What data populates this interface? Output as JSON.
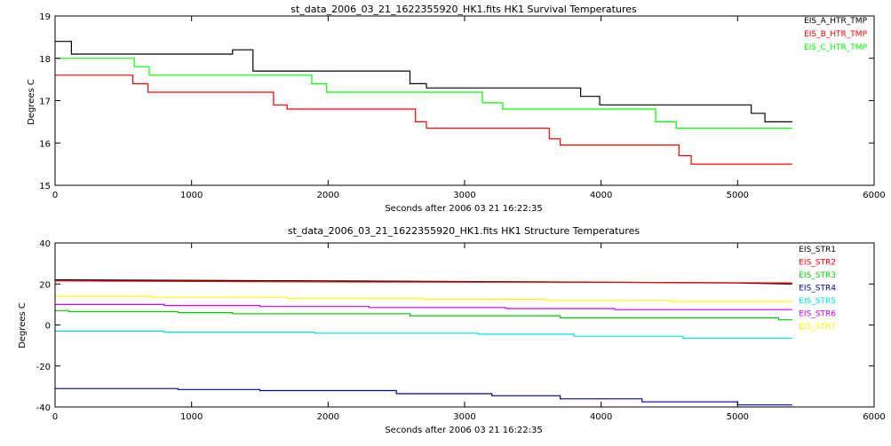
{
  "chart_data": [
    {
      "type": "line",
      "title": "st_data_2006_03_21_1622355920_HK1.fits HK1 Survival Temperatures",
      "xlabel": "Seconds after 2006 03 21 16:22:35",
      "ylabel": "Degrees C",
      "xlim": [
        0,
        6000
      ],
      "ylim": [
        15,
        19
      ],
      "xticks": [
        0,
        1000,
        2000,
        3000,
        4000,
        5000,
        6000
      ],
      "yticks": [
        15,
        16,
        17,
        18,
        19
      ],
      "legend_position": "top-right",
      "grid": false,
      "series": [
        {
          "name": "EIS_A_HTR_TMP",
          "color": "#000000",
          "x": [
            0,
            120,
            120,
            1300,
            1300,
            1450,
            1450,
            2600,
            2600,
            2720,
            2720,
            3850,
            3850,
            3990,
            3990,
            5100,
            5100,
            5200,
            5200,
            5400
          ],
          "y": [
            18.4,
            18.4,
            18.1,
            18.1,
            18.2,
            18.2,
            17.7,
            17.7,
            17.4,
            17.4,
            17.3,
            17.3,
            17.1,
            17.1,
            16.9,
            16.9,
            16.7,
            16.7,
            16.5,
            16.5
          ]
        },
        {
          "name": "EIS_B_HTR_TMP",
          "color": "#ff0000",
          "x": [
            0,
            570,
            570,
            680,
            680,
            1600,
            1600,
            1700,
            1700,
            2640,
            2640,
            2720,
            2720,
            3620,
            3620,
            3700,
            3700,
            4570,
            4570,
            4660,
            4660,
            5400
          ],
          "y": [
            17.6,
            17.6,
            17.4,
            17.4,
            17.2,
            17.2,
            16.9,
            16.9,
            16.8,
            16.8,
            16.5,
            16.5,
            16.35,
            16.35,
            16.1,
            16.1,
            15.95,
            15.95,
            15.7,
            15.7,
            15.5,
            15.5
          ],
          "z": 1
        },
        {
          "name": "EIS_C_HTR_TMP",
          "color": "#00ff00",
          "x": [
            0,
            580,
            580,
            690,
            690,
            1880,
            1880,
            1990,
            1990,
            3130,
            3130,
            3280,
            3280,
            4400,
            4400,
            4550,
            4550,
            5400
          ],
          "y": [
            18.0,
            18.0,
            17.8,
            17.8,
            17.6,
            17.6,
            17.4,
            17.4,
            17.2,
            17.2,
            16.95,
            16.95,
            16.8,
            16.8,
            16.5,
            16.5,
            16.35,
            16.35
          ]
        }
      ],
      "legend": [
        "EIS_A_HTR_TMP",
        "EIS_B_HTR_TMP",
        "EIS_C_HTR_TMP"
      ]
    },
    {
      "type": "line",
      "title": "st_data_2006_03_21_1622355920_HK1.fits HK1 Structure Temperatures",
      "xlabel": "Seconds after 2006 03 21 16:22:35",
      "ylabel": "Degrees C",
      "xlim": [
        0,
        6000
      ],
      "ylim": [
        -40,
        40
      ],
      "xticks": [
        0,
        1000,
        2000,
        3000,
        4000,
        5000,
        6000
      ],
      "yticks": [
        -40,
        -20,
        0,
        20,
        40
      ],
      "legend_position": "top-right",
      "grid": false,
      "series": [
        {
          "name": "EIS_STR1",
          "color": "#000000",
          "x": [
            0,
            2000,
            3500,
            5000,
            5400
          ],
          "y": [
            22,
            21.5,
            21,
            20.5,
            20
          ]
        },
        {
          "name": "EIS_STR2",
          "color": "#ff0000",
          "x": [
            0,
            2000,
            4000,
            5400
          ],
          "y": [
            21.5,
            21,
            20.8,
            20.5
          ]
        },
        {
          "name": "EIS_STR3",
          "color": "#00cc00",
          "x": [
            0,
            100,
            100,
            900,
            900,
            1300,
            1300,
            2600,
            2600,
            3700,
            3700,
            5300,
            5300,
            5400
          ],
          "y": [
            7,
            7,
            6.5,
            6.5,
            6,
            6,
            5.5,
            5.5,
            4.5,
            4.5,
            3.5,
            3.5,
            2.5,
            2.5
          ]
        },
        {
          "name": "EIS_STR4",
          "color": "#0000aa",
          "x": [
            0,
            900,
            900,
            1500,
            1500,
            2500,
            2500,
            3200,
            3200,
            3700,
            3700,
            4300,
            4300,
            5000,
            5000,
            5400
          ],
          "y": [
            -31,
            -31,
            -31.5,
            -31.5,
            -32,
            -32,
            -33.5,
            -33.5,
            -34.5,
            -34.5,
            -36,
            -36,
            -37.5,
            -37.5,
            -39,
            -39
          ]
        },
        {
          "name": "EIS_STR5",
          "color": "#00e0e0",
          "x": [
            0,
            800,
            800,
            1900,
            1900,
            3100,
            3100,
            3800,
            3800,
            4600,
            4600,
            5400
          ],
          "y": [
            -3,
            -3,
            -3.5,
            -3.5,
            -4,
            -4,
            -4.5,
            -4.5,
            -5.5,
            -5.5,
            -6.5,
            -6.5
          ]
        },
        {
          "name": "EIS_STR6",
          "color": "#cc00ff",
          "x": [
            0,
            800,
            800,
            1500,
            1500,
            2300,
            2300,
            3300,
            3300,
            4100,
            4100,
            5400
          ],
          "y": [
            10,
            10,
            9.5,
            9.5,
            9,
            9,
            8.5,
            8.5,
            8,
            8,
            7.5,
            7.5
          ]
        },
        {
          "name": "EIS_STR7",
          "color": "#ffff00",
          "x": [
            0,
            700,
            700,
            1700,
            1700,
            2700,
            2700,
            3600,
            3600,
            4500,
            4500,
            5400
          ],
          "y": [
            14,
            14,
            13.5,
            13.5,
            13,
            13,
            12.5,
            12.5,
            12,
            12,
            11.5,
            11.5
          ]
        }
      ],
      "legend": [
        "EIS_STR1",
        "EIS_STR2",
        "EIS_STR3",
        "EIS_STR4",
        "EIS_STR5",
        "EIS_STR6",
        "EIS_STR7"
      ]
    }
  ]
}
